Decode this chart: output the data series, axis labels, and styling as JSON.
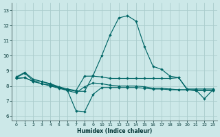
{
  "xlabel": "Humidex (Indice chaleur)",
  "bg_color": "#cce8e8",
  "grid_color": "#aacccc",
  "line_color": "#006666",
  "xlim": [
    -0.5,
    23.5
  ],
  "ylim": [
    5.7,
    13.5
  ],
  "yticks": [
    6,
    7,
    8,
    9,
    10,
    11,
    12,
    13
  ],
  "xticks": [
    0,
    1,
    2,
    3,
    4,
    5,
    6,
    7,
    8,
    9,
    10,
    11,
    12,
    13,
    14,
    15,
    16,
    17,
    18,
    19,
    20,
    21,
    22,
    23
  ],
  "line1_y": [
    8.6,
    8.9,
    8.45,
    8.3,
    8.1,
    7.9,
    7.75,
    7.65,
    7.65,
    8.7,
    10.0,
    11.4,
    12.5,
    12.65,
    12.3,
    10.6,
    9.3,
    9.1,
    8.65,
    8.55,
    7.75,
    7.75,
    7.15,
    7.75
  ],
  "line2_y": [
    8.55,
    8.85,
    8.35,
    8.3,
    8.15,
    7.95,
    7.8,
    7.7,
    8.65,
    8.65,
    8.6,
    8.5,
    8.5,
    8.5,
    8.5,
    8.5,
    8.5,
    8.5,
    8.5,
    8.55,
    7.8,
    7.8,
    7.8,
    7.8
  ],
  "line3_y": [
    8.5,
    8.55,
    8.3,
    8.15,
    8.0,
    7.85,
    7.7,
    6.35,
    6.3,
    7.45,
    7.9,
    7.9,
    7.9,
    7.9,
    7.9,
    7.85,
    7.8,
    7.8,
    7.75,
    7.75,
    7.75,
    7.7,
    7.7,
    7.7
  ],
  "line4_y": [
    8.5,
    8.55,
    8.3,
    8.15,
    8.05,
    7.9,
    7.7,
    7.55,
    7.95,
    8.2,
    8.15,
    8.05,
    8.0,
    8.0,
    8.0,
    7.95,
    7.85,
    7.85,
    7.8,
    7.75,
    7.75,
    7.7,
    7.7,
    7.7
  ]
}
